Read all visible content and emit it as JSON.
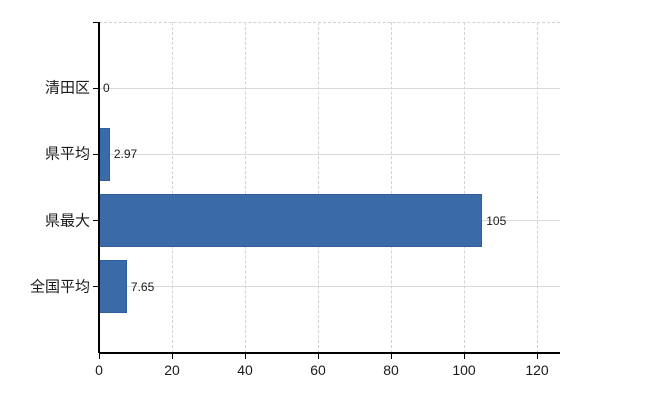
{
  "chart_data": {
    "type": "bar",
    "orientation": "horizontal",
    "categories": [
      "清田区",
      "県平均",
      "県最大",
      "全国平均"
    ],
    "values": [
      0,
      2.97,
      105,
      7.65
    ],
    "value_labels": [
      "0",
      "2.97",
      "105",
      "7.65"
    ],
    "x_ticks": [
      0,
      20,
      40,
      60,
      80,
      100,
      120
    ],
    "x_tick_labels": [
      "0",
      "20",
      "40",
      "60",
      "80",
      "100",
      "120"
    ],
    "xlim": [
      0,
      120
    ],
    "xlabel": "",
    "ylabel": "",
    "legend": "none",
    "grid": true,
    "colors": {
      "bar_fill": "#3a6aa8",
      "bar_border": "#2f5e9c",
      "grid_solid": "#d9d9d9",
      "grid_dashed": "#d2d2d2",
      "axis": "#000000",
      "text": "#1a1a1a"
    }
  }
}
